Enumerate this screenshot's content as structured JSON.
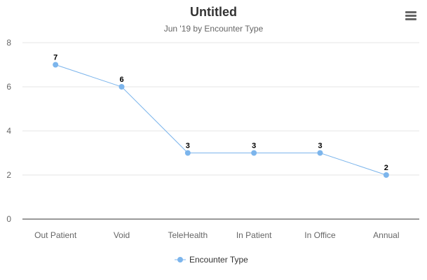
{
  "chart_data": {
    "type": "line",
    "title": "Untitled",
    "subtitle": "Jun '19 by Encounter Type",
    "categories": [
      "Out Patient",
      "Void",
      "TeleHealth",
      "In Patient",
      "In Office",
      "Annual"
    ],
    "series": [
      {
        "name": "Encounter Type",
        "values": [
          7,
          6,
          3,
          3,
          3,
          2
        ],
        "color": "#7cb5ec"
      }
    ],
    "ylim": [
      0,
      8
    ],
    "yticks": [
      0,
      2,
      4,
      6,
      8
    ],
    "xlabel": "",
    "ylabel": "",
    "grid": true,
    "data_labels": true,
    "legend": "bottom-center"
  },
  "colors": {
    "series": "#7cb5ec",
    "grid": "#e6e6e6",
    "axis_text": "#666666",
    "title": "#333333"
  },
  "menu": {
    "icon": "hamburger-menu-icon"
  }
}
